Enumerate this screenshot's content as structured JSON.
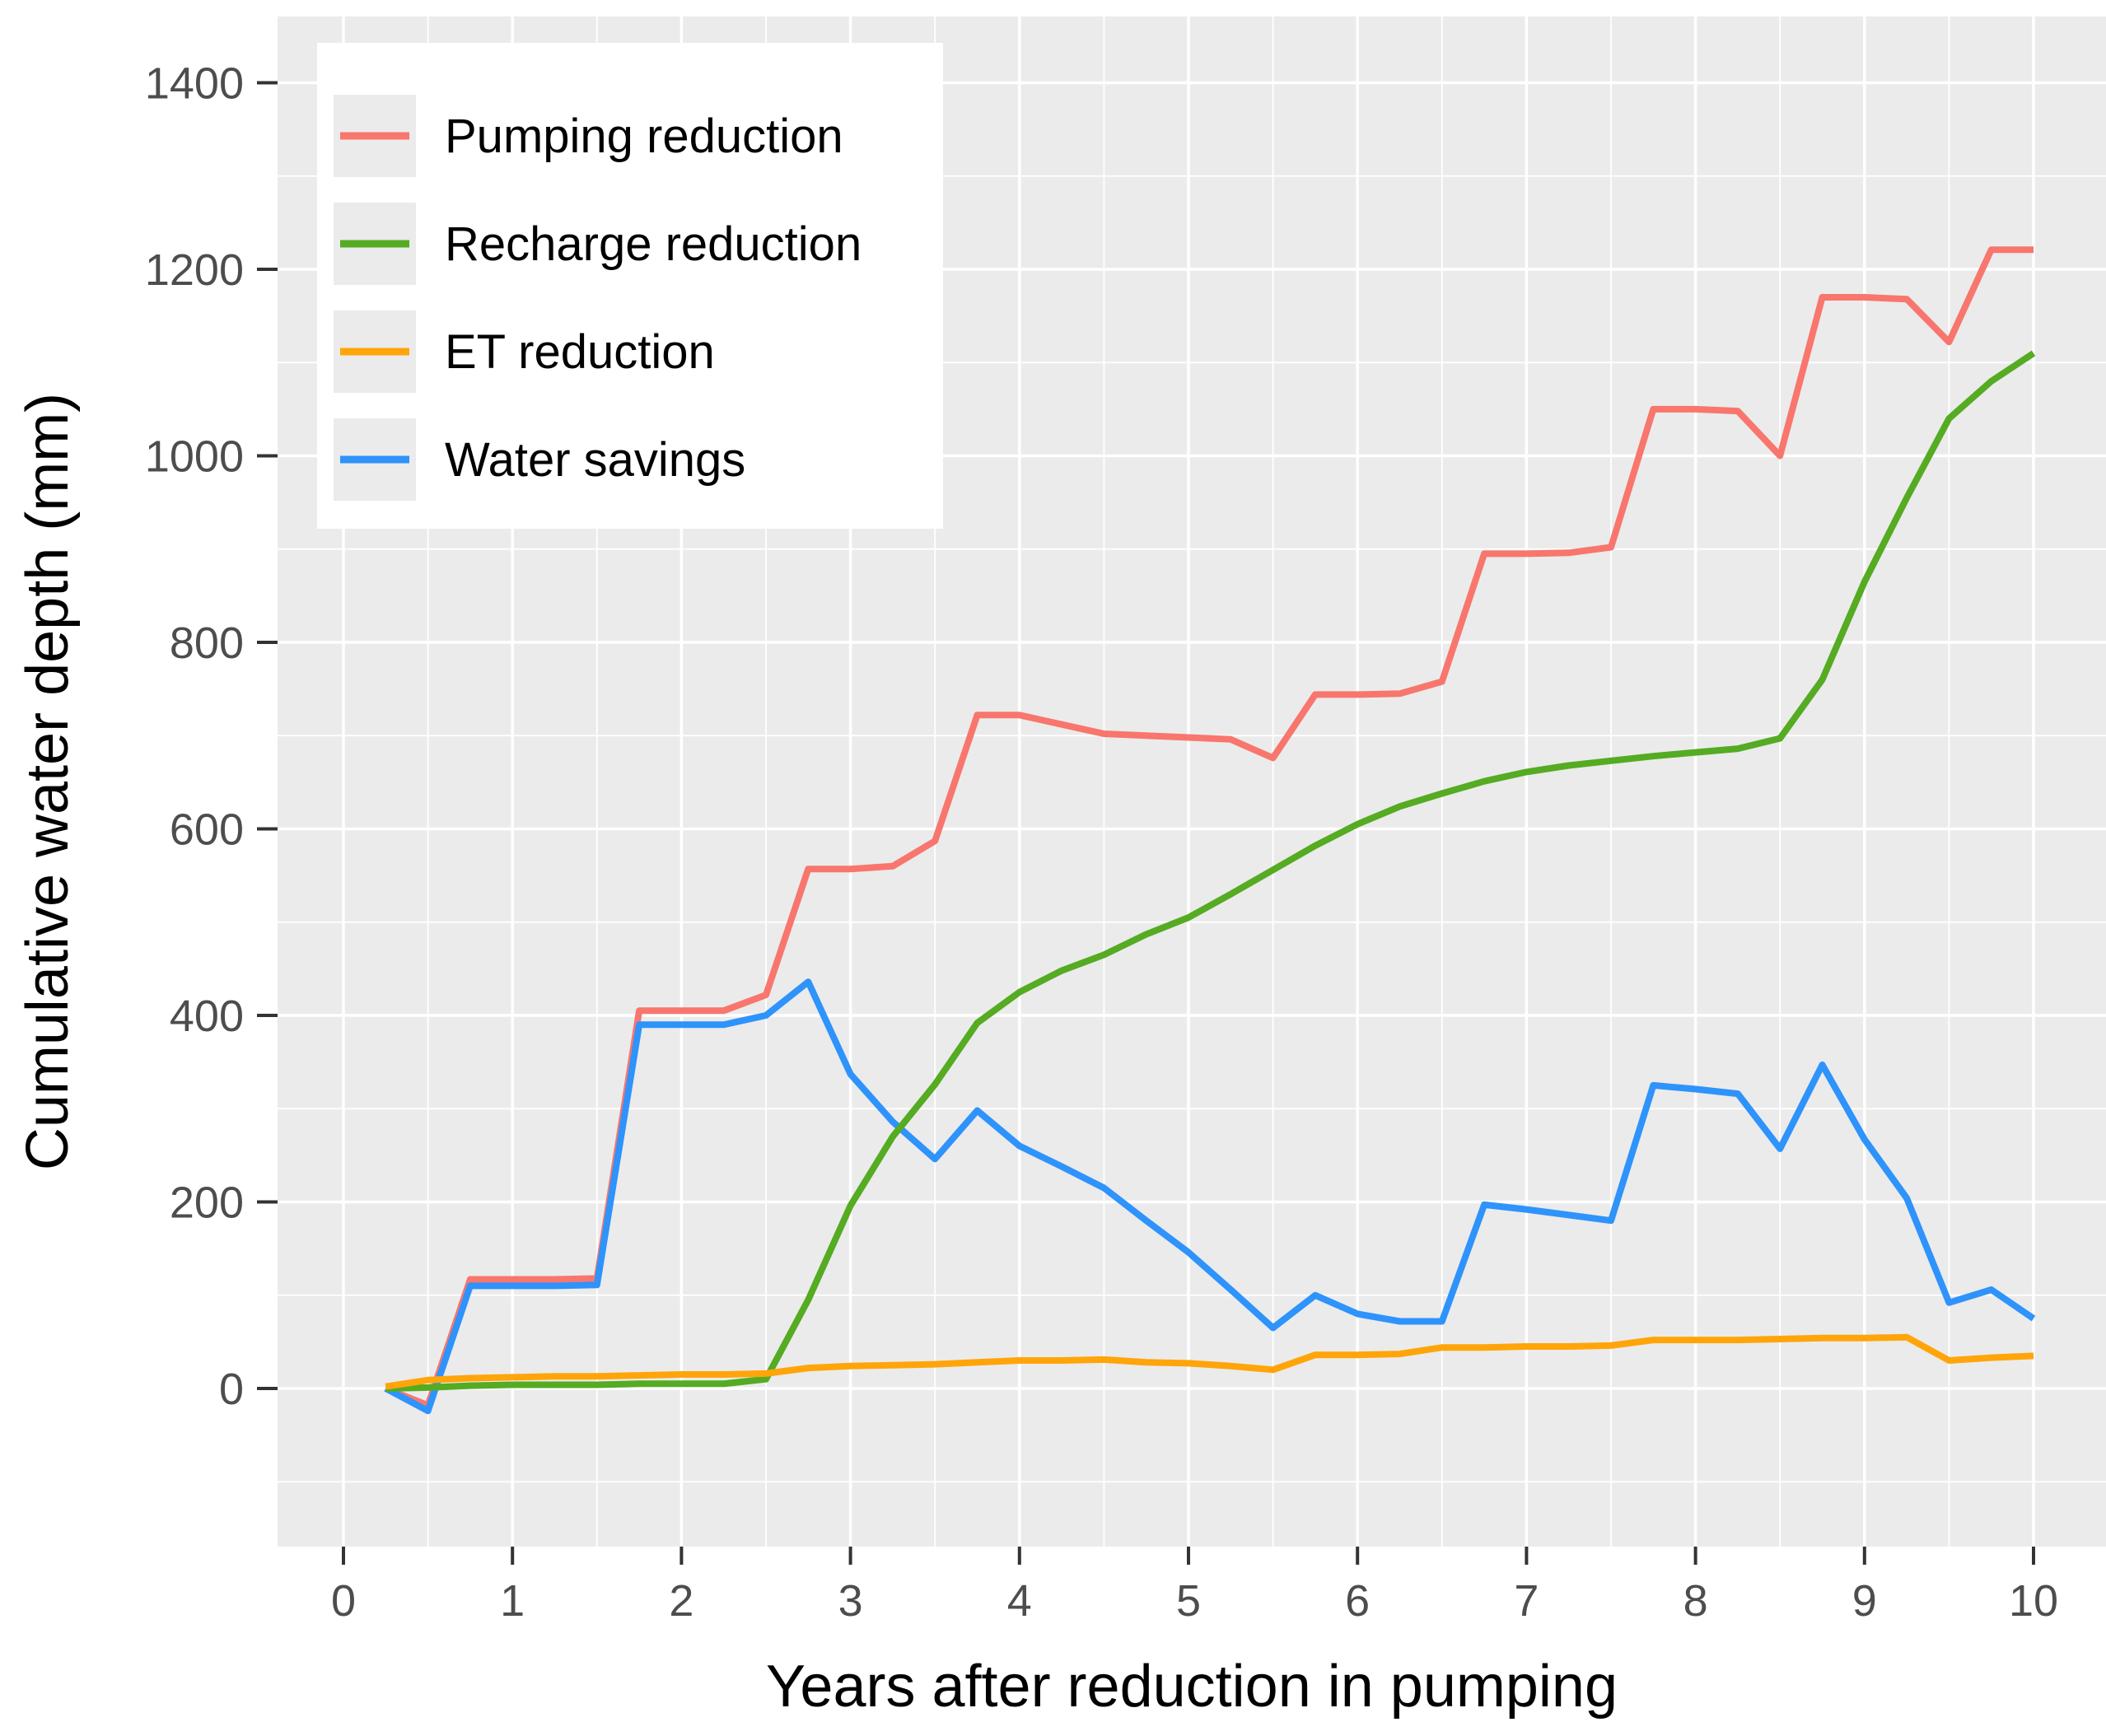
{
  "figure": {
    "x_axis_title": "Years after reduction in pumping",
    "y_axis_title": "Cumulative water depth (mm)"
  },
  "chart_data": {
    "type": "line",
    "title": "",
    "xlabel": "Years after reduction in pumping",
    "ylabel": "Cumulative water depth (mm)",
    "x_ticks": [
      0,
      1,
      2,
      3,
      4,
      5,
      6,
      7,
      8,
      9,
      10
    ],
    "y_ticks": [
      0,
      200,
      400,
      600,
      800,
      1000,
      1200,
      1400
    ],
    "xlim": [
      -0.39,
      10.43
    ],
    "ylim": [
      -170,
      1471
    ],
    "grid": "on",
    "minor_grid": "on",
    "legend_position": "top-left",
    "panel_background": "#EBEBEB",
    "grid_color": "#FFFFFF",
    "tick_color": "#333333",
    "tick_label_color": "#4D4D4D",
    "x": [
      0.25,
      0.5,
      0.75,
      1,
      1.25,
      1.5,
      1.75,
      2,
      2.25,
      2.5,
      2.75,
      3,
      3.25,
      3.5,
      3.75,
      4,
      4.25,
      4.5,
      4.75,
      5,
      5.25,
      5.5,
      5.75,
      6,
      6.25,
      6.5,
      6.75,
      7,
      7.25,
      7.5,
      7.75,
      8,
      8.25,
      8.5,
      8.75,
      9,
      9.25,
      9.5,
      9.75,
      10
    ],
    "series": [
      {
        "name": "Pumping reduction",
        "color": "#F8766D",
        "values": [
          0,
          -18,
          117,
          117,
          117,
          118,
          405,
          405,
          405,
          422,
          557,
          557,
          560,
          587,
          722,
          722,
          712,
          702,
          700,
          698,
          696,
          676,
          744,
          744,
          745,
          758,
          895,
          895,
          896,
          902,
          1050,
          1050,
          1048,
          1000,
          1170,
          1170,
          1168,
          1122,
          1221,
          1221
        ]
      },
      {
        "name": "Recharge reduction",
        "color": "#55AB22",
        "values": [
          0,
          1,
          3,
          4,
          4,
          4,
          5,
          5,
          5,
          10,
          95,
          196,
          270,
          326,
          392,
          425,
          448,
          465,
          487,
          505,
          530,
          556,
          582,
          605,
          624,
          638,
          651,
          661,
          668,
          673,
          678,
          682,
          686,
          697,
          760,
          865,
          955,
          1040,
          1080,
          1110
        ]
      },
      {
        "name": "ET reduction",
        "color": "#FFA50A",
        "values": [
          2,
          9,
          11,
          12,
          13,
          13,
          14,
          15,
          15,
          16,
          22,
          24,
          25,
          26,
          28,
          30,
          30,
          31,
          28,
          27,
          24,
          20,
          36,
          36,
          37,
          44,
          44,
          45,
          45,
          46,
          52,
          52,
          52,
          53,
          54,
          54,
          55,
          30,
          33,
          35
        ]
      },
      {
        "name": "Water savings",
        "color": "#2E93FB",
        "values": [
          0,
          -24,
          110,
          110,
          110,
          111,
          390,
          390,
          390,
          400,
          436,
          337,
          286,
          246,
          298,
          260,
          238,
          215,
          180,
          146,
          106,
          65,
          100,
          80,
          72,
          72,
          197,
          192,
          186,
          180,
          325,
          321,
          316,
          257,
          347,
          267,
          204,
          92,
          106,
          75
        ]
      }
    ]
  }
}
